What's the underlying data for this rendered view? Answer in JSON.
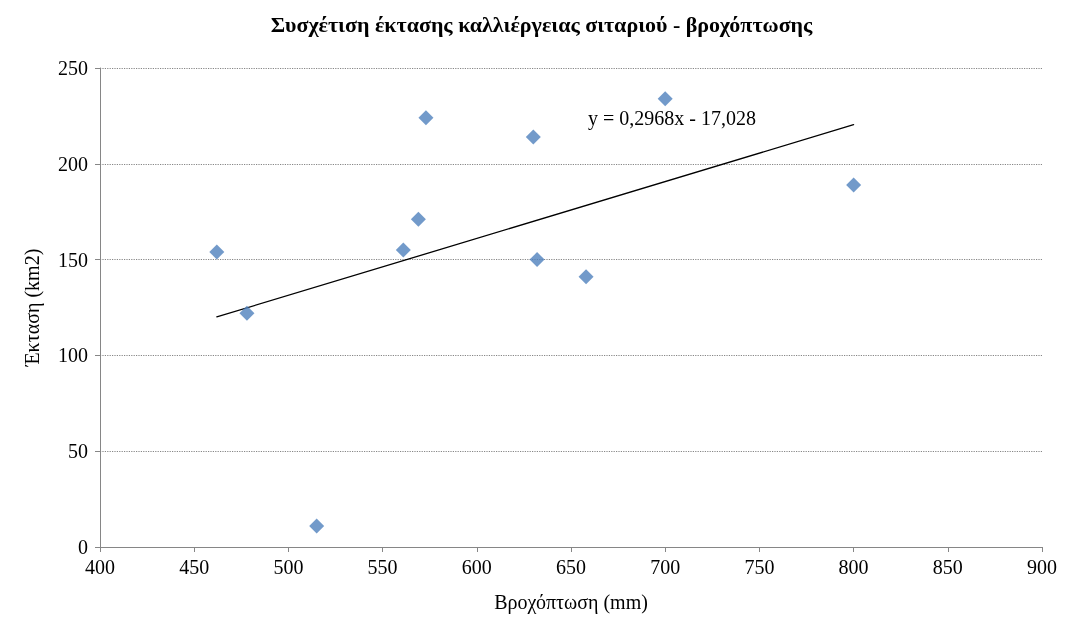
{
  "chart_data": {
    "type": "scatter",
    "title": "Συσχέτιση έκτασης καλλιέργειας σιταριού - βροχόπτωσης",
    "xlabel": "Βροχόπτωση (mm)",
    "ylabel": "Έκταση (km2)",
    "series": [
      {
        "color": "#4f81bd",
        "marker": "diamond",
        "x": [
          462,
          478,
          515,
          561,
          569,
          573,
          630,
          632,
          658,
          700,
          800
        ],
        "values": [
          154,
          122,
          11,
          155,
          171,
          224,
          214,
          150,
          141,
          234,
          189
        ]
      },
      {
        "type": "line",
        "color": "#000000",
        "marker": "none",
        "line_style": "solid",
        "x": [
          462,
          800
        ],
        "values": [
          120.1,
          220.4
        ]
      }
    ],
    "xlim": [
      400,
      900
    ],
    "xticks": [
      400,
      450,
      500,
      550,
      600,
      650,
      700,
      750,
      800,
      850,
      900
    ],
    "ylim": [
      0,
      250
    ],
    "yticks": [
      0,
      50,
      100,
      150,
      200,
      250
    ],
    "grid": "y",
    "annotations": [
      "y = 0,2968x - 17,028"
    ]
  }
}
